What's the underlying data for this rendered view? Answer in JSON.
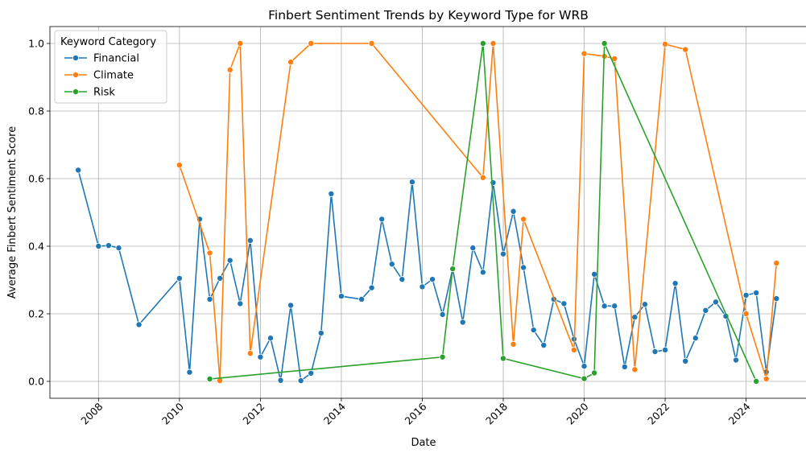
{
  "chart_data": {
    "type": "line",
    "title": "Finbert Sentiment Trends by Keyword Type for WRB",
    "xlabel": "Date",
    "ylabel": "Average Finbert Sentiment Score",
    "xlim": [
      2006.8,
      2025.5
    ],
    "ylim": [
      -0.05,
      1.05
    ],
    "x_ticks": [
      2008,
      2010,
      2012,
      2014,
      2016,
      2018,
      2020,
      2022,
      2024
    ],
    "y_ticks": [
      0.0,
      0.2,
      0.4,
      0.6,
      0.8,
      1.0
    ],
    "x_tick_labels": [
      "2008",
      "2010",
      "2012",
      "2014",
      "2016",
      "2018",
      "2020",
      "2022",
      "2024"
    ],
    "y_tick_labels": [
      "0.0",
      "0.2",
      "0.4",
      "0.6",
      "0.8",
      "1.0"
    ],
    "grid": true,
    "legend": {
      "title": "Keyword Category",
      "position": "top-left"
    },
    "series": [
      {
        "name": "Financial",
        "color": "#1f77b4",
        "points": [
          [
            2007.5,
            0.625
          ],
          [
            2008.0,
            0.4
          ],
          [
            2008.25,
            0.402
          ],
          [
            2008.5,
            0.395
          ],
          [
            2009.0,
            0.168
          ],
          [
            2010.0,
            0.305
          ],
          [
            2010.25,
            0.027
          ],
          [
            2010.5,
            0.48
          ],
          [
            2010.75,
            0.243
          ],
          [
            2011.0,
            0.305
          ],
          [
            2011.25,
            0.358
          ],
          [
            2011.5,
            0.23
          ],
          [
            2011.75,
            0.417
          ],
          [
            2012.0,
            0.072
          ],
          [
            2012.25,
            0.128
          ],
          [
            2012.5,
            0.003
          ],
          [
            2012.75,
            0.225
          ],
          [
            2013.0,
            0.002
          ],
          [
            2013.25,
            0.024
          ],
          [
            2013.5,
            0.143
          ],
          [
            2013.75,
            0.555
          ],
          [
            2014.0,
            0.252
          ],
          [
            2014.5,
            0.243
          ],
          [
            2014.75,
            0.277
          ],
          [
            2015.0,
            0.48
          ],
          [
            2015.25,
            0.347
          ],
          [
            2015.5,
            0.302
          ],
          [
            2015.75,
            0.59
          ],
          [
            2016.0,
            0.28
          ],
          [
            2016.25,
            0.302
          ],
          [
            2016.5,
            0.198
          ],
          [
            2016.75,
            0.333
          ],
          [
            2017.0,
            0.175
          ],
          [
            2017.25,
            0.395
          ],
          [
            2017.5,
            0.323
          ],
          [
            2017.75,
            0.588
          ],
          [
            2018.0,
            0.377
          ],
          [
            2018.25,
            0.503
          ],
          [
            2018.5,
            0.337
          ],
          [
            2018.75,
            0.152
          ],
          [
            2019.0,
            0.107
          ],
          [
            2019.25,
            0.243
          ],
          [
            2019.5,
            0.23
          ],
          [
            2019.75,
            0.125
          ],
          [
            2020.0,
            0.045
          ],
          [
            2020.25,
            0.317
          ],
          [
            2020.5,
            0.223
          ],
          [
            2020.75,
            0.223
          ],
          [
            2021.0,
            0.043
          ],
          [
            2021.25,
            0.19
          ],
          [
            2021.5,
            0.228
          ],
          [
            2021.75,
            0.088
          ],
          [
            2022.0,
            0.093
          ],
          [
            2022.25,
            0.29
          ],
          [
            2022.5,
            0.06
          ],
          [
            2022.75,
            0.128
          ],
          [
            2023.0,
            0.21
          ],
          [
            2023.25,
            0.235
          ],
          [
            2023.5,
            0.193
          ],
          [
            2023.75,
            0.063
          ],
          [
            2024.0,
            0.255
          ],
          [
            2024.25,
            0.262
          ],
          [
            2024.5,
            0.028
          ],
          [
            2024.75,
            0.245
          ]
        ]
      },
      {
        "name": "Climate",
        "color": "#ff7f0e",
        "points": [
          [
            2010.0,
            0.64
          ],
          [
            2010.75,
            0.38
          ],
          [
            2011.0,
            0.002
          ],
          [
            2011.25,
            0.922
          ],
          [
            2011.5,
            1.0
          ],
          [
            2011.75,
            0.083
          ],
          [
            2012.75,
            0.945
          ],
          [
            2013.25,
            1.0
          ],
          [
            2014.75,
            1.0
          ],
          [
            2017.5,
            0.603
          ],
          [
            2017.75,
            1.0
          ],
          [
            2018.25,
            0.11
          ],
          [
            2018.5,
            0.48
          ],
          [
            2019.75,
            0.093
          ],
          [
            2020.0,
            0.97
          ],
          [
            2020.5,
            0.962
          ],
          [
            2020.75,
            0.955
          ],
          [
            2021.25,
            0.035
          ],
          [
            2022.0,
            0.998
          ],
          [
            2022.5,
            0.982
          ],
          [
            2024.0,
            0.2
          ],
          [
            2024.5,
            0.007
          ],
          [
            2024.75,
            0.35
          ]
        ]
      },
      {
        "name": "Risk",
        "color": "#2ca02c",
        "points": [
          [
            2010.75,
            0.007
          ],
          [
            2016.5,
            0.072
          ],
          [
            2016.75,
            0.333
          ],
          [
            2017.5,
            1.0
          ],
          [
            2018.0,
            0.068
          ],
          [
            2020.0,
            0.008
          ],
          [
            2020.25,
            0.025
          ],
          [
            2020.5,
            1.0
          ],
          [
            2024.25,
            0.0
          ]
        ]
      }
    ]
  }
}
